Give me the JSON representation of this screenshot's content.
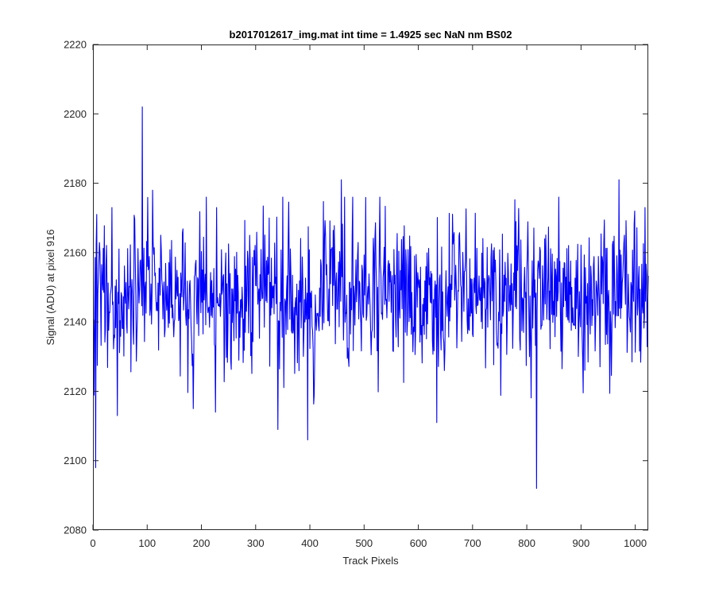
{
  "chart_data": {
    "type": "line",
    "title": "b2017012617_img.mat int time = 1.4925 sec  NaN nm BS02",
    "xlabel": "Track Pixels",
    "ylabel": "Signal (ADU) at pixel 916",
    "xlim": [
      0,
      1024
    ],
    "ylim": [
      2080,
      2220
    ],
    "x_ticks": [
      0,
      100,
      200,
      300,
      400,
      500,
      600,
      700,
      800,
      900,
      1000
    ],
    "y_ticks": [
      2080,
      2100,
      2120,
      2140,
      2160,
      2180,
      2200,
      2220
    ],
    "x_tick_labels": [
      "0",
      "100",
      "200",
      "300",
      "400",
      "500",
      "600",
      "700",
      "800",
      "900",
      "1000"
    ],
    "y_tick_labels": [
      "2080",
      "2100",
      "2120",
      "2140",
      "2160",
      "2180",
      "2200",
      "2220"
    ],
    "grid": false,
    "series": [
      {
        "color": "#0000ff",
        "x_start": 1,
        "x_step": 1,
        "count": 1024,
        "mean": 2148,
        "std": 11,
        "seed": 916,
        "features": [
          {
            "x": 5,
            "y": 2098
          },
          {
            "x": 7,
            "y": 2171
          },
          {
            "x": 35,
            "y": 2173
          },
          {
            "x": 45,
            "y": 2113
          },
          {
            "x": 91,
            "y": 2202
          },
          {
            "x": 110,
            "y": 2178
          },
          {
            "x": 226,
            "y": 2114
          },
          {
            "x": 228,
            "y": 2173
          },
          {
            "x": 341,
            "y": 2109
          },
          {
            "x": 396,
            "y": 2106
          },
          {
            "x": 458,
            "y": 2181
          },
          {
            "x": 634,
            "y": 2111
          },
          {
            "x": 818,
            "y": 2092
          },
          {
            "x": 970,
            "y": 2181
          },
          {
            "x": 1018,
            "y": 2173
          }
        ]
      }
    ]
  }
}
